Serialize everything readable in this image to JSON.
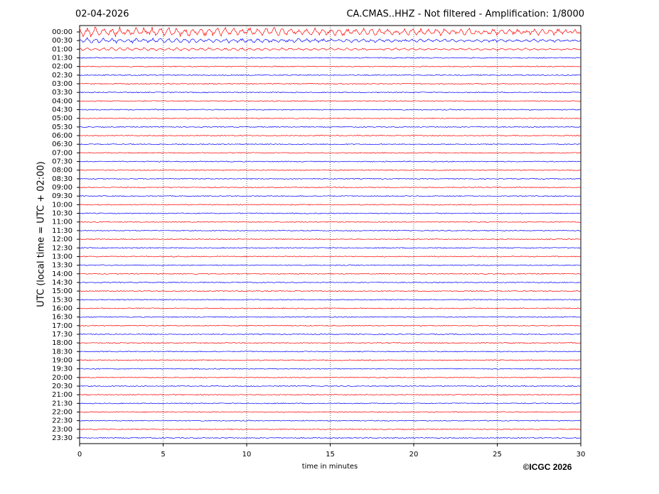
{
  "chart_data": {
    "type": "helicorder",
    "title_left": "02-04-2026",
    "title_right": "CA.CMAS..HHZ - Not filtered - Amplification: 1/8000",
    "x_label": "time in minutes",
    "y_label": "UTC (local time = UTC + 02:00)",
    "copyright": "©ICGC 2026",
    "categories": [
      "00:00",
      "00:30",
      "01:00",
      "01:30",
      "02:00",
      "02:30",
      "03:00",
      "03:30",
      "04:00",
      "04:30",
      "05:00",
      "05:30",
      "06:00",
      "06:30",
      "07:00",
      "07:30",
      "08:00",
      "08:30",
      "09:00",
      "09:30",
      "10:00",
      "10:30",
      "11:00",
      "11:30",
      "12:00",
      "12:30",
      "13:00",
      "13:30",
      "14:00",
      "14:30",
      "15:00",
      "15:30",
      "16:00",
      "16:30",
      "17:00",
      "17:30",
      "18:00",
      "18:30",
      "19:00",
      "19:30",
      "20:00",
      "20:30",
      "21:00",
      "21:30",
      "22:00",
      "22:30",
      "23:00",
      "23:30"
    ],
    "colors": [
      "#ff0000",
      "#0000ff"
    ],
    "xlim": [
      0,
      30
    ],
    "xticks": [
      0,
      5,
      10,
      15,
      20,
      25,
      30
    ],
    "grid": true
  }
}
